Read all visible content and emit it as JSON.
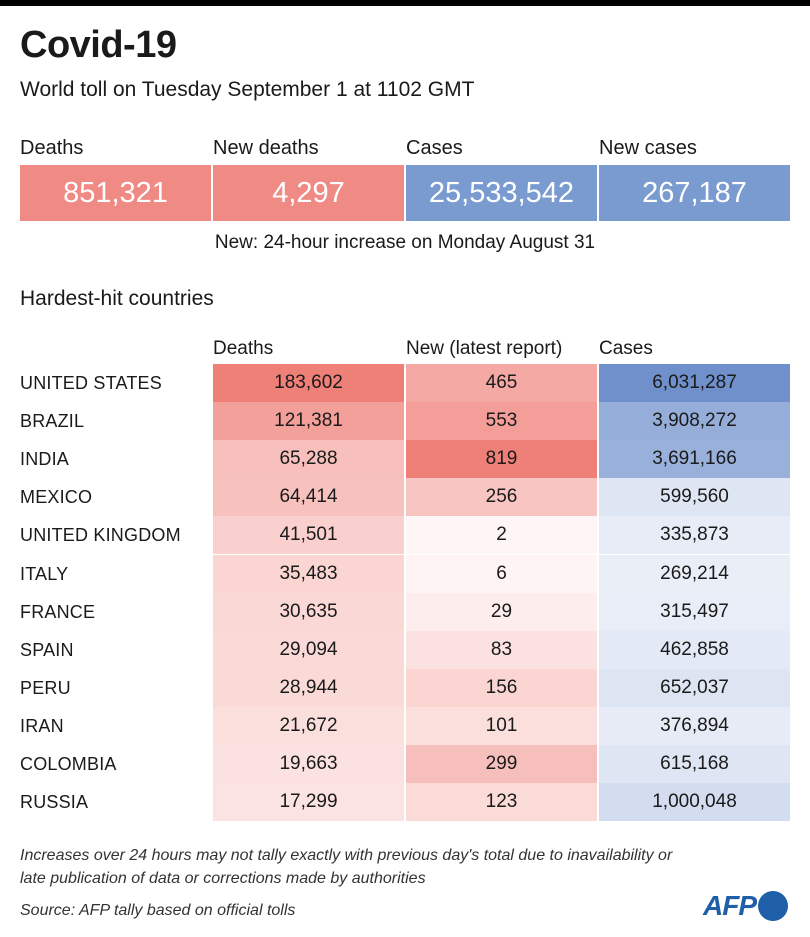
{
  "title": "Covid-19",
  "subtitle": "World toll on Tuesday September 1 at 1102 GMT",
  "kpis": [
    {
      "label": "Deaths",
      "value": "851,321",
      "color": "#ef8a85"
    },
    {
      "label": "New deaths",
      "value": "4,297",
      "color": "#ef8a85"
    },
    {
      "label": "Cases",
      "value": "25,533,542",
      "color": "#7a9bd0"
    },
    {
      "label": "New cases",
      "value": "267,187",
      "color": "#7a9bd0"
    }
  ],
  "note": "New: 24-hour increase on Monday August 31",
  "section_title": "Hardest-hit countries",
  "colors": {
    "deaths_scale": "#ef8078",
    "cases_scale": "#7090cc"
  },
  "chart_data": {
    "type": "table",
    "columns": [
      "Deaths",
      "New (latest report)",
      "Cases"
    ],
    "rows": [
      {
        "country": "UNITED STATES",
        "deaths": "183,602",
        "new": "465",
        "cases": "6,031,287"
      },
      {
        "country": "BRAZIL",
        "deaths": "121,381",
        "new": "553",
        "cases": "3,908,272"
      },
      {
        "country": "INDIA",
        "deaths": "65,288",
        "new": "819",
        "cases": "3,691,166"
      },
      {
        "country": "MEXICO",
        "deaths": "64,414",
        "new": "256",
        "cases": "599,560"
      },
      {
        "country": "UNITED KINGDOM",
        "deaths": "41,501",
        "new": "2",
        "cases": "335,873"
      },
      {
        "country": "ITALY",
        "deaths": "35,483",
        "new": "6",
        "cases": "269,214"
      },
      {
        "country": "FRANCE",
        "deaths": "30,635",
        "new": "29",
        "cases": "315,497"
      },
      {
        "country": "SPAIN",
        "deaths": "29,094",
        "new": "83",
        "cases": "462,858"
      },
      {
        "country": "PERU",
        "deaths": "28,944",
        "new": "156",
        "cases": "652,037"
      },
      {
        "country": "IRAN",
        "deaths": "21,672",
        "new": "101",
        "cases": "376,894"
      },
      {
        "country": "COLOMBIA",
        "deaths": "19,663",
        "new": "299",
        "cases": "615,168"
      },
      {
        "country": "RUSSIA",
        "deaths": "17,299",
        "new": "123",
        "cases": "1,000,048"
      }
    ]
  },
  "footnote": "Increases over 24 hours may not tally exactly with previous day's total due to inavailability or late publication of data or corrections made by authorities",
  "source": "Source: AFP tally based on official tolls",
  "logo": "AFP"
}
